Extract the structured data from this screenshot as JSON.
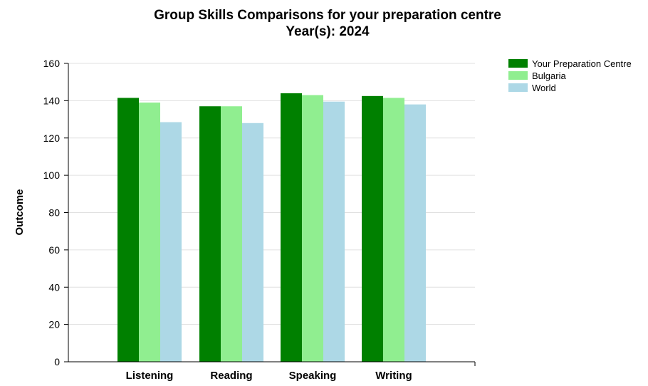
{
  "chart_data": {
    "type": "bar",
    "title": "Group Skills Comparisons for your preparation centre",
    "subtitle": "Year(s): 2024",
    "xlabel": "",
    "ylabel": "Outcome",
    "ylim": [
      0,
      160
    ],
    "yticks": [
      "0",
      "20",
      "40",
      "60",
      "80",
      "100",
      "120",
      "140",
      "160"
    ],
    "categories": [
      "Listening",
      "Reading",
      "Speaking",
      "Writing"
    ],
    "series": [
      {
        "name": "Your Preparation Centre",
        "color": "#008000",
        "values": [
          141.5,
          137,
          144,
          142.5
        ]
      },
      {
        "name": "Bulgaria",
        "color": "#90ee90",
        "values": [
          139,
          137,
          143,
          141.5
        ]
      },
      {
        "name": "World",
        "color": "#add8e6",
        "values": [
          128.5,
          128,
          139.5,
          138
        ]
      }
    ],
    "grid": true,
    "legend_position": "top-right"
  }
}
